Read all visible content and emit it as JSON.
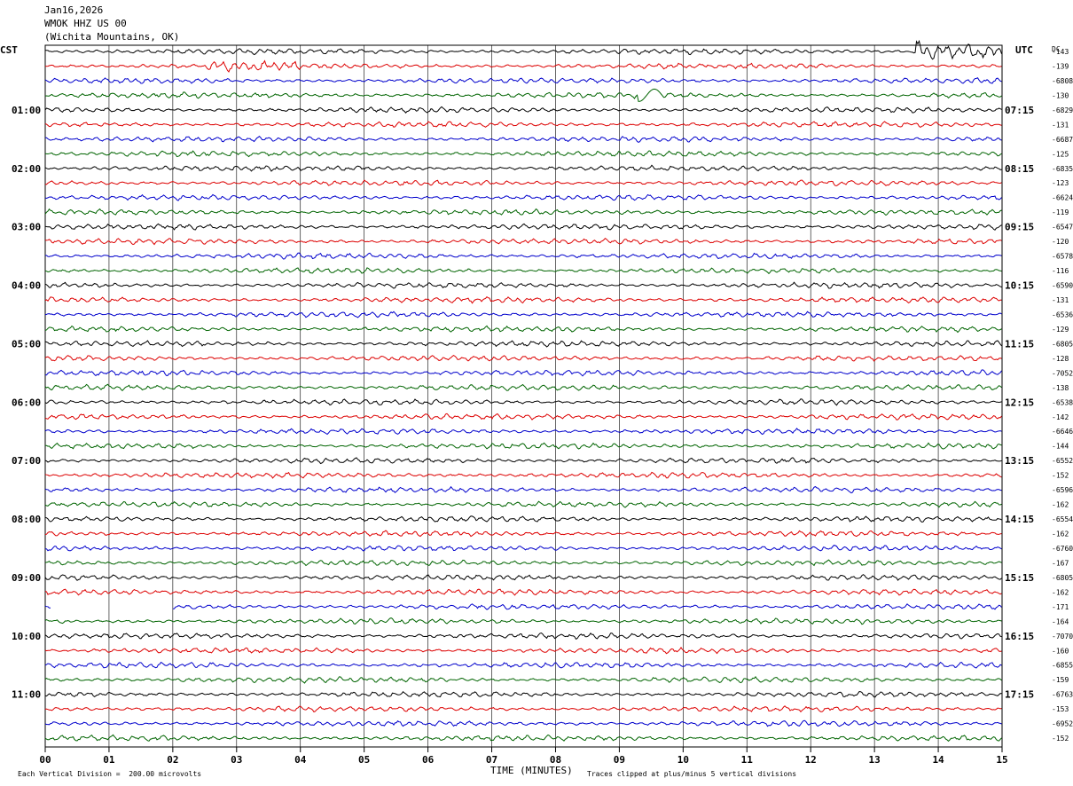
{
  "header": {
    "date": "Jan16,2026",
    "station": "WMOK HHZ US 00",
    "location": "(Wichita Mountains, OK)"
  },
  "left_tz": "CST",
  "right_tz": "UTC",
  "dc_label": "DC",
  "footer": {
    "left": "Each Vertical Division =  200.00 microvolts",
    "right": "Traces clipped at plus/minus 5 vertical divisions"
  },
  "chart_data": {
    "type": "line",
    "title": "",
    "xlabel": "TIME (MINUTES)",
    "xlim": [
      0,
      15
    ],
    "x_ticks": [
      "00",
      "01",
      "02",
      "03",
      "04",
      "05",
      "06",
      "07",
      "08",
      "09",
      "10",
      "11",
      "12",
      "13",
      "14",
      "15"
    ],
    "trace_colors": [
      "#000000",
      "#dd0000",
      "#0000cc",
      "#006400"
    ],
    "left_time_labels": [
      {
        "row": 4,
        "label": "01:00"
      },
      {
        "row": 8,
        "label": "02:00"
      },
      {
        "row": 12,
        "label": "03:00"
      },
      {
        "row": 16,
        "label": "04:00"
      },
      {
        "row": 20,
        "label": "05:00"
      },
      {
        "row": 24,
        "label": "06:00"
      },
      {
        "row": 28,
        "label": "07:00"
      },
      {
        "row": 32,
        "label": "08:00"
      },
      {
        "row": 36,
        "label": "09:00"
      },
      {
        "row": 40,
        "label": "10:00"
      },
      {
        "row": 44,
        "label": "11:00"
      }
    ],
    "right_time_labels": [
      {
        "row": 4,
        "label": "07:15"
      },
      {
        "row": 8,
        "label": "08:15"
      },
      {
        "row": 12,
        "label": "09:15"
      },
      {
        "row": 16,
        "label": "10:15"
      },
      {
        "row": 20,
        "label": "11:15"
      },
      {
        "row": 24,
        "label": "12:15"
      },
      {
        "row": 28,
        "label": "13:15"
      },
      {
        "row": 32,
        "label": "14:15"
      },
      {
        "row": 36,
        "label": "15:15"
      },
      {
        "row": 40,
        "label": "16:15"
      },
      {
        "row": 44,
        "label": "17:15"
      }
    ],
    "dc_values": [
      "-143",
      "-139",
      "-6808",
      "-130",
      "-6829",
      "-131",
      "-6687",
      "-125",
      "-6835",
      "-123",
      "-6624",
      "-119",
      "-6547",
      "-120",
      "-6578",
      "-116",
      "-6590",
      "-131",
      "-6536",
      "-129",
      "-6805",
      "-128",
      "-7052",
      "-138",
      "-6538",
      "-142",
      "-6646",
      "-144",
      "-6552",
      "-152",
      "-6596",
      "-162",
      "-6554",
      "-162",
      "-6760",
      "-167",
      "-6805",
      "-162",
      "-171",
      "-164",
      "-7070",
      "-160",
      "-6855",
      "-159",
      "-6763",
      "-153",
      "-6952",
      "-152"
    ],
    "trace_count": 48,
    "events": [
      {
        "row": 0,
        "minute_start": 13.6,
        "minute_end": 15,
        "note": "high amplitude burst"
      },
      {
        "row": 1,
        "minute_start": 2.5,
        "minute_end": 4.0,
        "note": "high amplitude"
      },
      {
        "row": 3,
        "minute_start": 9.3,
        "minute_end": 9.7,
        "note": "long period"
      }
    ],
    "data_gaps": [
      {
        "row": 38,
        "minute_start": 0.1,
        "minute_end": 2.0
      }
    ]
  }
}
